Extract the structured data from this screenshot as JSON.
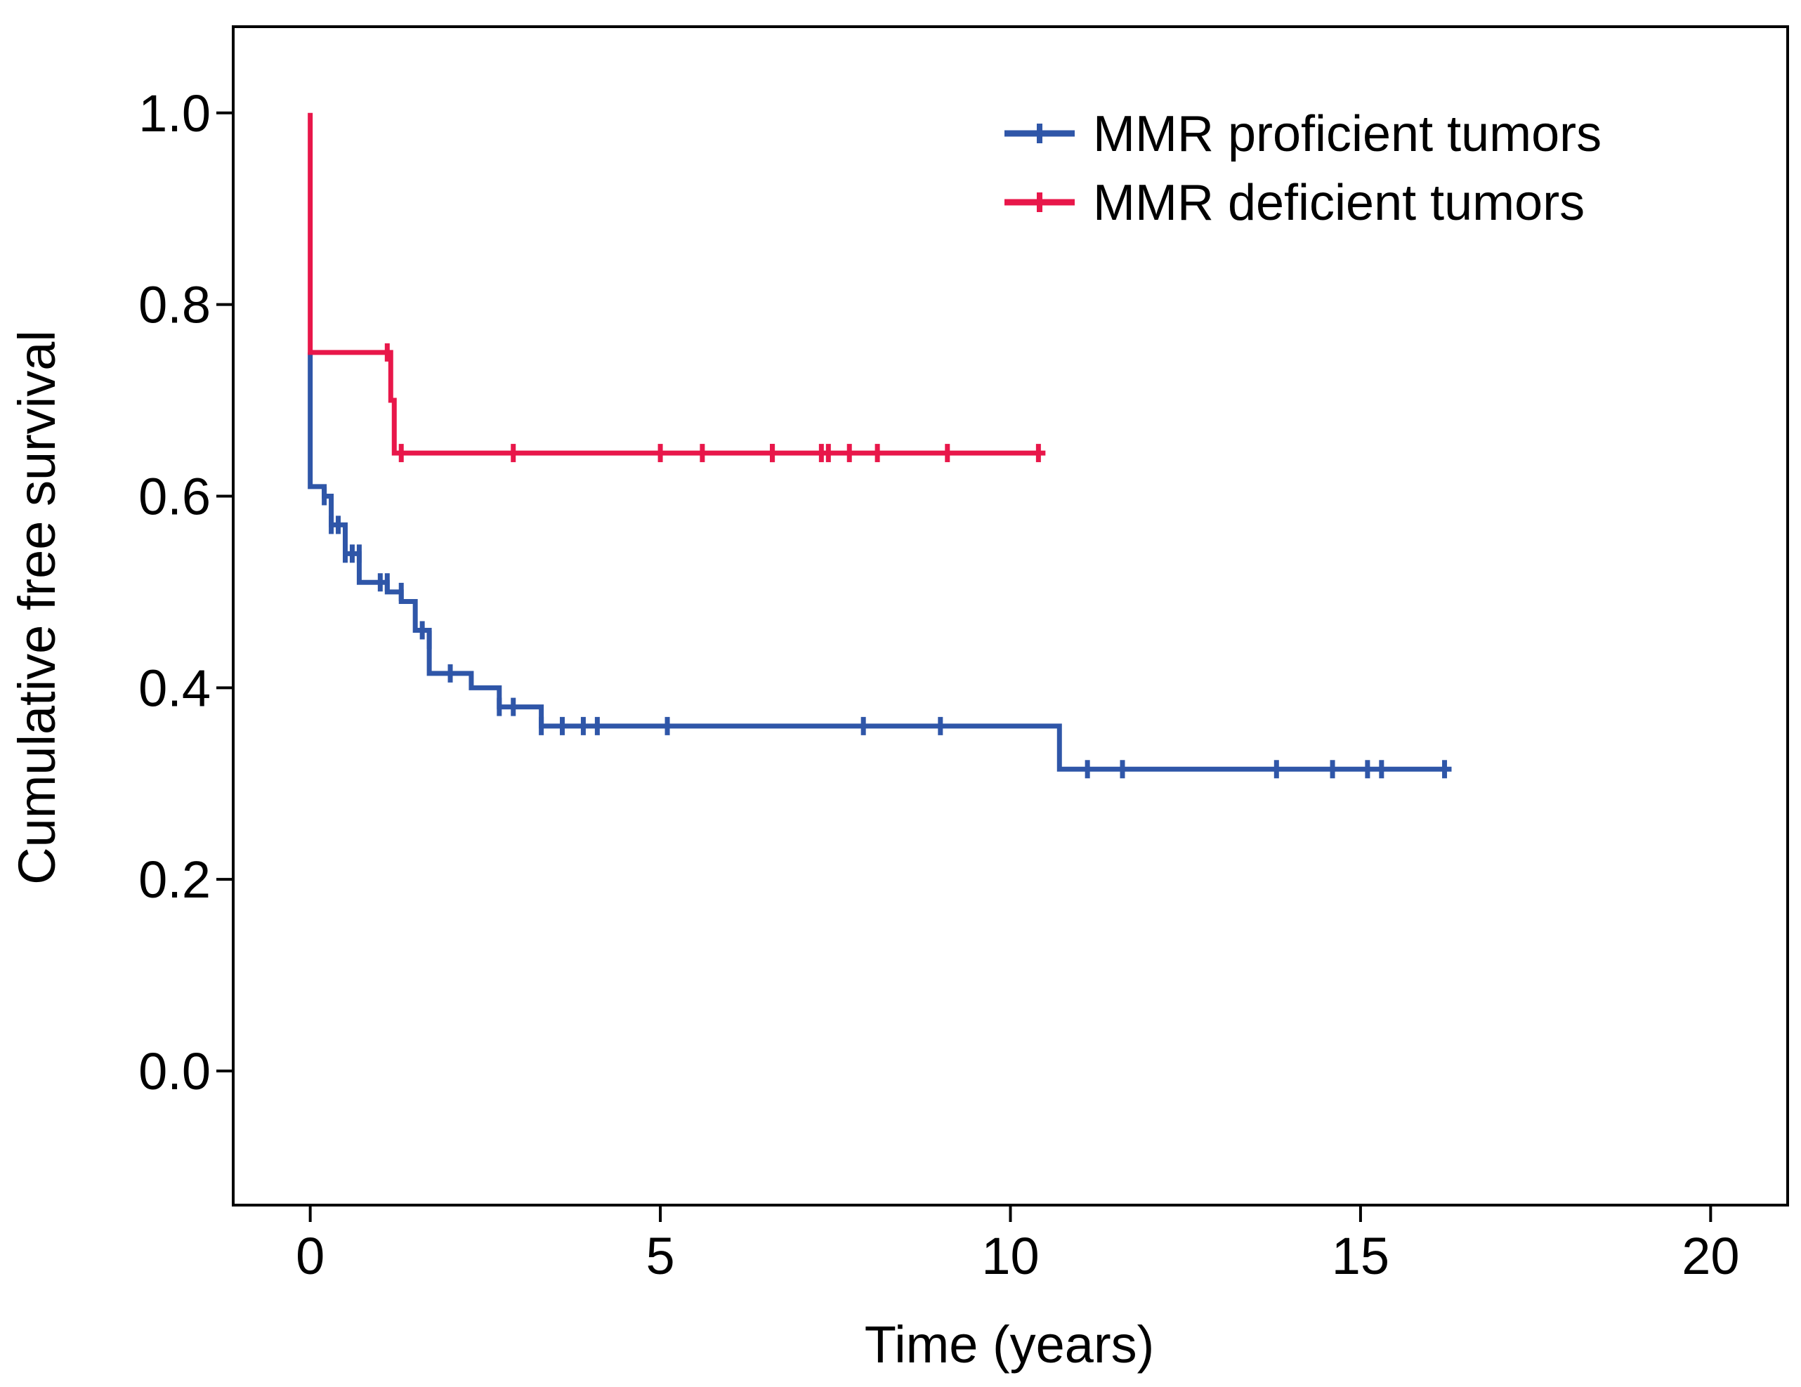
{
  "chart_data": {
    "type": "line",
    "style": "kaplan-meier-step",
    "title": "",
    "xlabel": "Time (years)",
    "ylabel": "Cumulative free survival",
    "xlim": [
      -1.1,
      21.1
    ],
    "ylim": [
      -0.14,
      1.09
    ],
    "xticks": [
      0,
      5,
      10,
      15,
      20
    ],
    "yticks": [
      0.0,
      0.2,
      0.4,
      0.6,
      0.8,
      1.0
    ],
    "xtick_labels": [
      "0",
      "5",
      "10",
      "15",
      "20"
    ],
    "ytick_labels": [
      "0.0",
      "0.2",
      "0.4",
      "0.6",
      "0.8",
      "1.0"
    ],
    "grid": false,
    "legend_position": "top-right",
    "series": [
      {
        "name": "MMR proficient tumors",
        "color": "#2f56a8",
        "steps": [
          [
            0,
            0.75
          ],
          [
            0,
            0.61
          ],
          [
            0.2,
            0.6
          ],
          [
            0.3,
            0.57
          ],
          [
            0.5,
            0.54
          ],
          [
            0.7,
            0.51
          ],
          [
            1.1,
            0.5
          ],
          [
            1.3,
            0.49
          ],
          [
            1.5,
            0.46
          ],
          [
            1.7,
            0.415
          ],
          [
            2.3,
            0.4
          ],
          [
            2.7,
            0.38
          ],
          [
            3.3,
            0.36
          ],
          [
            10.7,
            0.315
          ],
          [
            16.3,
            0.315
          ]
        ],
        "censored": [
          [
            0.2,
            0.6
          ],
          [
            0.3,
            0.57
          ],
          [
            0.4,
            0.57
          ],
          [
            0.5,
            0.54
          ],
          [
            0.6,
            0.54
          ],
          [
            0.7,
            0.54
          ],
          [
            1.0,
            0.51
          ],
          [
            1.1,
            0.51
          ],
          [
            1.3,
            0.5
          ],
          [
            1.6,
            0.46
          ],
          [
            1.7,
            0.45
          ],
          [
            2.0,
            0.415
          ],
          [
            2.7,
            0.38
          ],
          [
            2.9,
            0.38
          ],
          [
            3.3,
            0.36
          ],
          [
            3.6,
            0.36
          ],
          [
            3.9,
            0.36
          ],
          [
            4.1,
            0.36
          ],
          [
            5.1,
            0.36
          ],
          [
            7.9,
            0.36
          ],
          [
            9.0,
            0.36
          ],
          [
            11.1,
            0.315
          ],
          [
            11.6,
            0.315
          ],
          [
            13.8,
            0.315
          ],
          [
            14.6,
            0.315
          ],
          [
            15.1,
            0.315
          ],
          [
            15.3,
            0.315
          ],
          [
            16.2,
            0.315
          ]
        ]
      },
      {
        "name": "MMR deficient tumors",
        "color": "#e8174a",
        "steps": [
          [
            0,
            1.0
          ],
          [
            0,
            0.75
          ],
          [
            1.15,
            0.7
          ],
          [
            1.2,
            0.645
          ],
          [
            10.5,
            0.645
          ]
        ],
        "censored": [
          [
            1.1,
            0.75
          ],
          [
            1.3,
            0.645
          ],
          [
            2.9,
            0.645
          ],
          [
            5.0,
            0.645
          ],
          [
            5.6,
            0.645
          ],
          [
            6.6,
            0.645
          ],
          [
            6.6,
            0.645
          ],
          [
            7.3,
            0.645
          ],
          [
            7.4,
            0.645
          ],
          [
            7.7,
            0.645
          ],
          [
            8.1,
            0.645
          ],
          [
            9.1,
            0.645
          ],
          [
            10.4,
            0.645
          ]
        ]
      }
    ]
  }
}
